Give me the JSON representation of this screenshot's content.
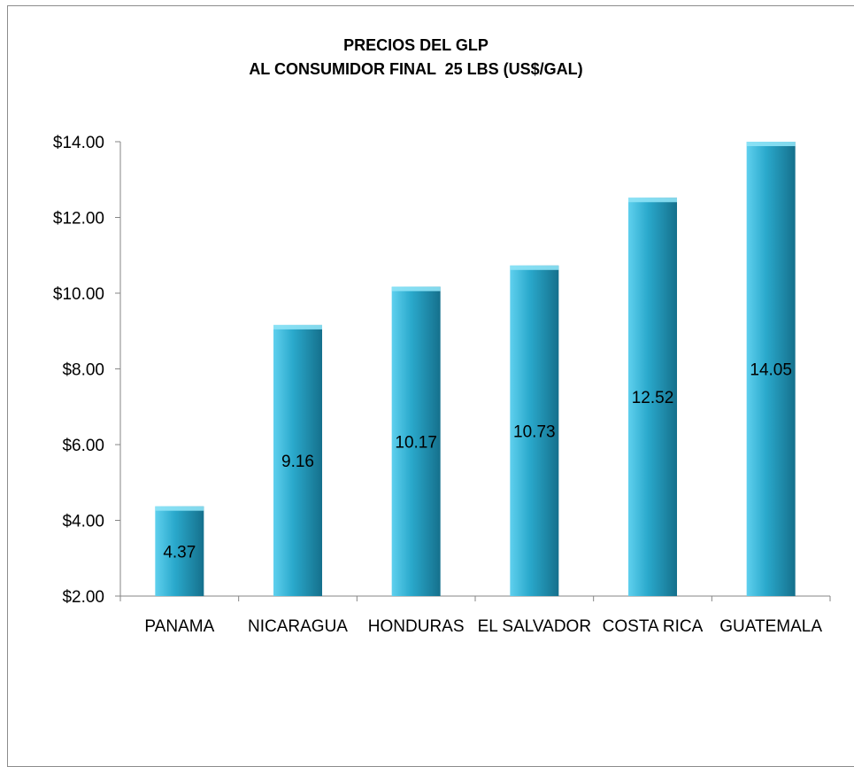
{
  "chart_data": {
    "type": "bar",
    "title": [
      "PRECIOS DEL GLP",
      "AL CONSUMIDOR FINAL  25 LBS (US$/GAL)"
    ],
    "xlabel": "",
    "ylabel": "",
    "categories": [
      "PANAMA",
      "NICARAGUA",
      "HONDURAS",
      "EL SALVADOR",
      "COSTA RICA",
      "GUATEMALA"
    ],
    "values": [
      4.37,
      9.16,
      10.17,
      10.73,
      12.52,
      14.05
    ],
    "data_labels": [
      "4.37",
      "9.16",
      "10.17",
      "10.73",
      "12.52",
      "14.05"
    ],
    "ylim": [
      2,
      14
    ],
    "yticks": [
      2,
      4,
      6,
      8,
      10,
      12,
      14
    ],
    "ytick_labels": [
      "$2.00",
      "$4.00",
      "$6.00",
      "$8.00",
      "$10.00",
      "$12.00",
      "$14.00"
    ],
    "grid": false,
    "legend": "none",
    "colors": {
      "bar_light": "#5fd0ee",
      "bar_mid": "#2aa9cc",
      "bar_dark": "#15708c",
      "bar_top": "#8fe3f6",
      "axis": "#868686"
    }
  }
}
